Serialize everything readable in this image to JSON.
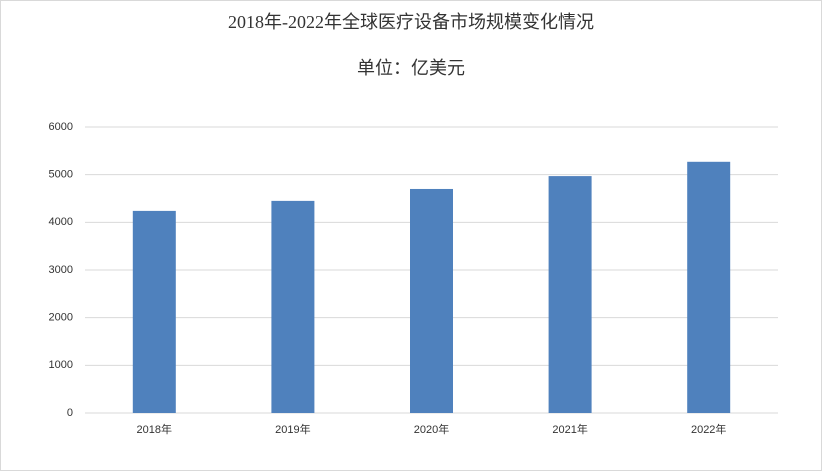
{
  "chart_data": {
    "type": "bar",
    "title": "2018年-2022年全球医疗设备市场规模变化情况",
    "subtitle": "单位：亿美元",
    "categories": [
      "2018年",
      "2019年",
      "2020年",
      "2021年",
      "2022年"
    ],
    "values": [
      4240,
      4450,
      4700,
      4970,
      5270
    ],
    "color": "#4f81bd",
    "ylim": [
      0,
      6000
    ],
    "yticks": [
      0,
      1000,
      2000,
      3000,
      4000,
      5000,
      6000
    ],
    "grid": true
  }
}
